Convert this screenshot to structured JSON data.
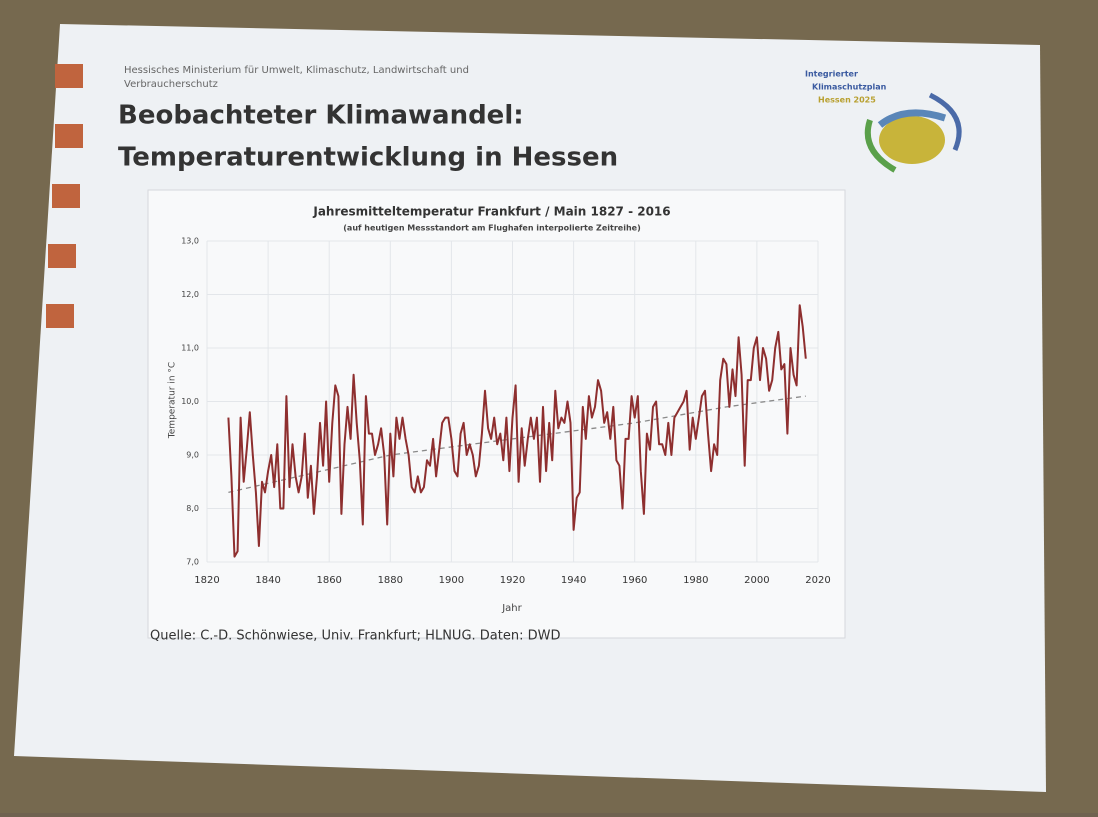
{
  "slide": {
    "ministry": [
      "Hessisches Ministerium für Umwelt, Klimaschutz, Landwirtschaft und",
      "Verbraucherschutz"
    ],
    "title": [
      "Beobachteter Klimawandel:",
      "Temperaturentwicklung in Hessen"
    ],
    "logo": [
      "Integrierter",
      "Klimaschutzplan",
      "Hessen 2025"
    ],
    "source": "Quelle: C.-D. Schönwiese, Univ. Frankfurt; HLNUG. Daten: DWD"
  },
  "chart_data": {
    "type": "line",
    "title": "Jahresmitteltemperatur Frankfurt / Main 1827 - 2016",
    "subtitle": "(auf heutigen Messstandort am Flughafen interpolierte Zeitreihe)",
    "xlabel": "Jahr",
    "ylabel": "Temperatur in °C",
    "x": [
      1827,
      1828,
      1829,
      1830,
      1831,
      1832,
      1833,
      1834,
      1835,
      1836,
      1837,
      1838,
      1839,
      1840,
      1841,
      1842,
      1843,
      1844,
      1845,
      1846,
      1847,
      1848,
      1849,
      1850,
      1851,
      1852,
      1853,
      1854,
      1855,
      1856,
      1857,
      1858,
      1859,
      1860,
      1861,
      1862,
      1863,
      1864,
      1865,
      1866,
      1867,
      1868,
      1869,
      1870,
      1871,
      1872,
      1873,
      1874,
      1875,
      1876,
      1877,
      1878,
      1879,
      1880,
      1881,
      1882,
      1883,
      1884,
      1885,
      1886,
      1887,
      1888,
      1889,
      1890,
      1891,
      1892,
      1893,
      1894,
      1895,
      1896,
      1897,
      1898,
      1899,
      1900,
      1901,
      1902,
      1903,
      1904,
      1905,
      1906,
      1907,
      1908,
      1909,
      1910,
      1911,
      1912,
      1913,
      1914,
      1915,
      1916,
      1917,
      1918,
      1919,
      1920,
      1921,
      1922,
      1923,
      1924,
      1925,
      1926,
      1927,
      1928,
      1929,
      1930,
      1931,
      1932,
      1933,
      1934,
      1935,
      1936,
      1937,
      1938,
      1939,
      1940,
      1941,
      1942,
      1943,
      1944,
      1945,
      1946,
      1947,
      1948,
      1949,
      1950,
      1951,
      1952,
      1953,
      1954,
      1955,
      1956,
      1957,
      1958,
      1959,
      1960,
      1961,
      1962,
      1963,
      1964,
      1965,
      1966,
      1967,
      1968,
      1969,
      1970,
      1971,
      1972,
      1973,
      1974,
      1975,
      1976,
      1977,
      1978,
      1979,
      1980,
      1981,
      1982,
      1983,
      1984,
      1985,
      1986,
      1987,
      1988,
      1989,
      1990,
      1991,
      1992,
      1993,
      1994,
      1995,
      1996,
      1997,
      1998,
      1999,
      2000,
      2001,
      2002,
      2003,
      2004,
      2005,
      2006,
      2007,
      2008,
      2009,
      2010,
      2011,
      2012,
      2013,
      2014,
      2015,
      2016
    ],
    "series": [
      {
        "color": "#8e2f2f",
        "values": [
          9.7,
          8.6,
          7.1,
          7.2,
          9.7,
          8.5,
          9.1,
          9.8,
          9.0,
          8.3,
          7.3,
          8.5,
          8.3,
          8.7,
          9.0,
          8.4,
          9.2,
          8.0,
          8.0,
          10.1,
          8.4,
          9.2,
          8.6,
          8.3,
          8.6,
          9.4,
          8.2,
          8.8,
          7.9,
          8.6,
          9.6,
          8.8,
          10.0,
          8.5,
          9.6,
          10.3,
          10.1,
          7.9,
          9.2,
          9.9,
          9.3,
          10.5,
          9.6,
          8.9,
          7.7,
          10.1,
          9.4,
          9.4,
          9.0,
          9.2,
          9.5,
          9.0,
          7.7,
          9.4,
          8.6,
          9.7,
          9.3,
          9.7,
          9.3,
          9.0,
          8.4,
          8.3,
          8.6,
          8.3,
          8.4,
          8.9,
          8.8,
          9.3,
          8.6,
          9.1,
          9.6,
          9.7,
          9.7,
          9.3,
          8.7,
          8.6,
          9.4,
          9.6,
          9.0,
          9.2,
          9.0,
          8.6,
          8.8,
          9.4,
          10.2,
          9.5,
          9.3,
          9.7,
          9.2,
          9.4,
          8.9,
          9.7,
          8.7,
          9.7,
          10.3,
          8.5,
          9.5,
          8.8,
          9.3,
          9.7,
          9.3,
          9.7,
          8.5,
          9.9,
          8.7,
          9.6,
          8.9,
          10.2,
          9.5,
          9.7,
          9.6,
          10.0,
          9.6,
          7.6,
          8.2,
          8.3,
          9.9,
          9.3,
          10.1,
          9.7,
          9.9,
          10.4,
          10.2,
          9.6,
          9.8,
          9.3,
          9.9,
          8.9,
          8.8,
          8.0,
          9.3,
          9.3,
          10.1,
          9.7,
          10.1,
          8.7,
          7.9,
          9.4,
          9.1,
          9.9,
          10.0,
          9.2,
          9.2,
          9.0,
          9.6,
          9.0,
          9.7,
          9.8,
          9.9,
          10.0,
          10.2,
          9.1,
          9.7,
          9.3,
          9.7,
          10.1,
          10.2,
          9.4,
          8.7,
          9.2,
          9.0,
          10.4,
          10.8,
          10.7,
          9.9,
          10.6,
          10.1,
          11.2,
          10.5,
          8.8,
          10.4,
          10.4,
          11.0,
          11.2,
          10.4,
          11.0,
          10.8,
          10.2,
          10.4,
          11.0,
          11.3,
          10.6,
          10.7,
          9.4,
          11.0,
          10.5,
          10.3,
          11.8,
          11.4,
          10.8
        ]
      }
    ],
    "trend": {
      "color": "#8a8a8a",
      "x": [
        1827,
        1850,
        1880,
        1920,
        1960,
        1990,
        2016
      ],
      "values": [
        8.3,
        8.6,
        9.0,
        9.3,
        9.6,
        9.9,
        10.1
      ]
    },
    "xlim": [
      1820,
      2020
    ],
    "xticks": [
      1820,
      1840,
      1860,
      1880,
      1900,
      1920,
      1940,
      1960,
      1980,
      2000,
      2020
    ],
    "ylim": [
      7,
      13
    ],
    "yticks": [
      {
        "value": 7,
        "label": "7,0"
      },
      {
        "value": 8,
        "label": "8,0"
      },
      {
        "value": 9,
        "label": "9,0"
      },
      {
        "value": 10,
        "label": "10,0"
      },
      {
        "value": 11,
        "label": "11,0"
      },
      {
        "value": 12,
        "label": "12,0"
      },
      {
        "value": 13,
        "label": "13,0"
      }
    ],
    "grid": true
  }
}
